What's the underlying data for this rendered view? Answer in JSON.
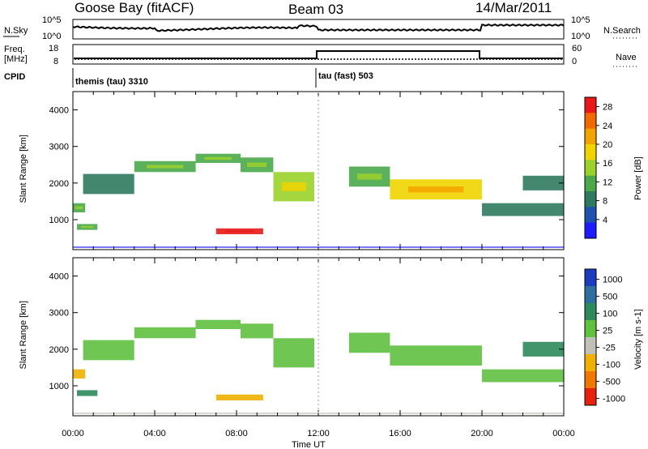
{
  "header": {
    "station": "Goose Bay (fitACF)",
    "beam": "Beam 03",
    "date": "14/Mar/2011"
  },
  "top_panel": {
    "left_label": "N.Sky",
    "right_label": "N.Search",
    "ticks_left": [
      "10^5",
      "10^0"
    ],
    "ticks_right": [
      "10^5",
      "10^0"
    ]
  },
  "freq_panel": {
    "left_label": "Freq.",
    "left_unit": "[MHz]",
    "right_label": "Nave",
    "ticks_left": [
      "18",
      "8"
    ],
    "ticks_right": [
      "60",
      "0"
    ]
  },
  "cpid": {
    "label": "CPID",
    "segments": [
      "themis (tau) 3310",
      "tau (fast) 503"
    ]
  },
  "chart_data": [
    {
      "type": "heatmap",
      "title": "",
      "xlabel": "Time UT",
      "ylabel": "Slant Range [km]",
      "x_ticks": [
        "00:00",
        "04:00",
        "08:00",
        "12:00",
        "16:00",
        "20:00",
        "00:00"
      ],
      "xlim": [
        0,
        24
      ],
      "ylim": [
        180,
        4500
      ],
      "y_ticks": [
        "1000",
        "2000",
        "3000",
        "4000"
      ],
      "colorbar": {
        "label": "Power [dB]",
        "ticks": [
          "4",
          "8",
          "12",
          "16",
          "20",
          "24",
          "28"
        ],
        "range": [
          0,
          30
        ],
        "colors": [
          "#1c1cff",
          "#2050b0",
          "#2e7a5e",
          "#4aa84a",
          "#9ad12a",
          "#f0d400",
          "#f4a400",
          "#f06a00",
          "#e81818"
        ]
      },
      "bands": [
        {
          "t": [
            0.0,
            0.6
          ],
          "r": [
            1200,
            1450
          ],
          "v": 12
        },
        {
          "t": [
            0.5,
            3.0
          ],
          "r": [
            1700,
            2250
          ],
          "v": 8
        },
        {
          "t": [
            3.0,
            6.0
          ],
          "r": [
            2300,
            2600
          ],
          "v": 10
        },
        {
          "t": [
            6.0,
            8.2
          ],
          "r": [
            2550,
            2800
          ],
          "v": 12
        },
        {
          "t": [
            8.2,
            9.8
          ],
          "r": [
            2300,
            2700
          ],
          "v": 10
        },
        {
          "t": [
            9.8,
            11.8
          ],
          "r": [
            1500,
            2300
          ],
          "v": 16
        },
        {
          "t": [
            7.0,
            9.3
          ],
          "r": [
            600,
            760
          ],
          "v": 28
        },
        {
          "t": [
            0.2,
            1.2
          ],
          "r": [
            720,
            880
          ],
          "v": 12
        },
        {
          "t": [
            13.5,
            15.5
          ],
          "r": [
            1900,
            2450
          ],
          "v": 12
        },
        {
          "t": [
            15.5,
            20.0
          ],
          "r": [
            1550,
            2100
          ],
          "v": 18
        },
        {
          "t": [
            20.0,
            24.0
          ],
          "r": [
            1100,
            1450
          ],
          "v": 8
        },
        {
          "t": [
            22.0,
            24.0
          ],
          "r": [
            1800,
            2200
          ],
          "v": 8
        }
      ]
    },
    {
      "type": "heatmap",
      "title": "",
      "xlabel": "Time UT",
      "ylabel": "Slant Range [km]",
      "x_ticks": [
        "00:00",
        "04:00",
        "08:00",
        "12:00",
        "16:00",
        "20:00",
        "00:00"
      ],
      "xlim": [
        0,
        24
      ],
      "ylim": [
        180,
        4500
      ],
      "y_ticks": [
        "1000",
        "2000",
        "3000",
        "4000"
      ],
      "colorbar": {
        "label": "Velocity [m s-1]",
        "ticks": [
          "1000",
          "500",
          "100",
          "25",
          "-25",
          "-100",
          "-500",
          "-1000"
        ],
        "colors": [
          "#1c3cbe",
          "#2e6fa0",
          "#2e8a5a",
          "#60c040",
          "#c0c0b8",
          "#f0b000",
          "#f07800",
          "#e82010"
        ]
      },
      "bands": [
        {
          "t": [
            0.0,
            0.6
          ],
          "r": [
            1200,
            1450
          ],
          "v": "-100"
        },
        {
          "t": [
            0.5,
            3.0
          ],
          "r": [
            1700,
            2250
          ],
          "v": "25"
        },
        {
          "t": [
            3.0,
            6.0
          ],
          "r": [
            2300,
            2600
          ],
          "v": "25"
        },
        {
          "t": [
            6.0,
            8.2
          ],
          "r": [
            2550,
            2800
          ],
          "v": "25"
        },
        {
          "t": [
            8.2,
            9.8
          ],
          "r": [
            2300,
            2700
          ],
          "v": "25"
        },
        {
          "t": [
            9.8,
            11.8
          ],
          "r": [
            1500,
            2300
          ],
          "v": "25"
        },
        {
          "t": [
            7.0,
            9.3
          ],
          "r": [
            600,
            760
          ],
          "v": "-100"
        },
        {
          "t": [
            0.2,
            1.2
          ],
          "r": [
            720,
            880
          ],
          "v": "100"
        },
        {
          "t": [
            13.5,
            15.5
          ],
          "r": [
            1900,
            2450
          ],
          "v": "25"
        },
        {
          "t": [
            15.5,
            20.0
          ],
          "r": [
            1550,
            2100
          ],
          "v": "25"
        },
        {
          "t": [
            20.0,
            24.0
          ],
          "r": [
            1100,
            1450
          ],
          "v": "25"
        },
        {
          "t": [
            22.0,
            24.0
          ],
          "r": [
            1800,
            2200
          ],
          "v": "100"
        }
      ]
    }
  ]
}
